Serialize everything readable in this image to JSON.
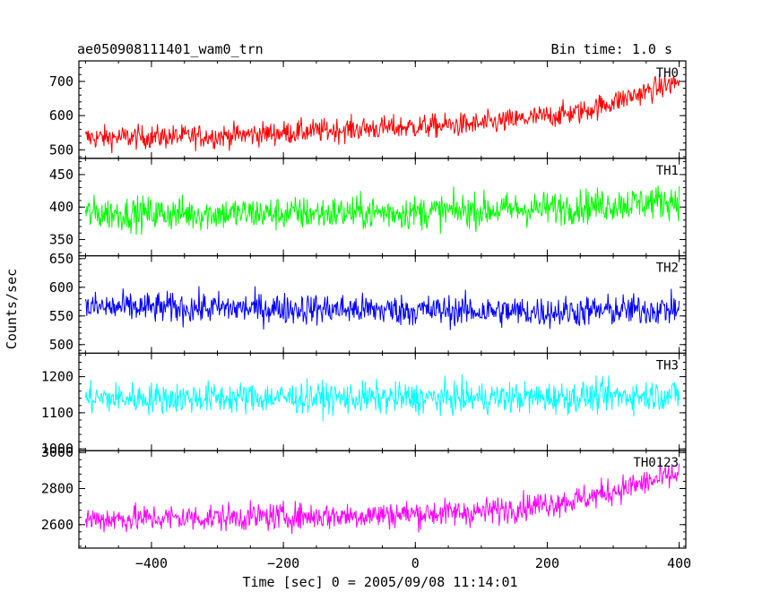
{
  "header": {
    "left_title": "ae050908111401_wam0_trn",
    "right_title": "Bin time: 1.0 s"
  },
  "chart_data": {
    "type": "line",
    "xlabel": "Time [sec] 0 = 2005/09/08 11:14:01",
    "ylabel": "Counts/sec",
    "xlim": [
      -510,
      410
    ],
    "x_ticks": [
      -400,
      -200,
      0,
      200,
      400
    ],
    "x_tick_labels": [
      "−400",
      "−200",
      "0",
      "200",
      "400"
    ],
    "x_start": -500,
    "x_end": 400,
    "x_step": 1,
    "panels": [
      {
        "name": "TH0",
        "color": "#ff0000",
        "ylim": [
          475,
          760
        ],
        "y_ticks": [
          500,
          600,
          700
        ],
        "y_tick_labels": [
          "500",
          "600",
          "700"
        ],
        "trend": [
          [
            -500,
            535
          ],
          [
            -300,
            540
          ],
          [
            -100,
            560
          ],
          [
            100,
            575
          ],
          [
            250,
            610
          ],
          [
            400,
            700
          ]
        ],
        "noise": 32
      },
      {
        "name": "TH1",
        "color": "#00ff00",
        "ylim": [
          325,
          475
        ],
        "y_ticks": [
          350,
          400,
          450
        ],
        "y_tick_labels": [
          "350",
          "400",
          "450"
        ],
        "trend": [
          [
            -500,
            390
          ],
          [
            -200,
            390
          ],
          [
            0,
            392
          ],
          [
            200,
            398
          ],
          [
            400,
            410
          ]
        ],
        "noise": 24
      },
      {
        "name": "TH2",
        "color": "#0000ff",
        "ylim": [
          485,
          655
        ],
        "y_ticks": [
          500,
          550,
          600,
          650
        ],
        "y_tick_labels": [
          "500",
          "550",
          "600",
          "650"
        ],
        "trend": [
          [
            -500,
            565
          ],
          [
            -200,
            563
          ],
          [
            0,
            560
          ],
          [
            200,
            557
          ],
          [
            400,
            562
          ]
        ],
        "noise": 25
      },
      {
        "name": "TH3",
        "color": "#00ffff",
        "ylim": [
          995,
          1265
        ],
        "y_ticks": [
          1000,
          1100,
          1200
        ],
        "y_tick_labels": [
          "1000",
          "1100",
          "1200"
        ],
        "trend": [
          [
            -500,
            1140
          ],
          [
            -200,
            1142
          ],
          [
            0,
            1140
          ],
          [
            200,
            1142
          ],
          [
            400,
            1150
          ]
        ],
        "noise": 40
      },
      {
        "name": "TH0123",
        "color": "#ff00ff",
        "ylim": [
          2470,
          3010
        ],
        "y_ticks": [
          2600,
          2800,
          3000
        ],
        "y_tick_labels": [
          "2600",
          "2800",
          "3000"
        ],
        "trend": [
          [
            -500,
            2630
          ],
          [
            -300,
            2640
          ],
          [
            -100,
            2650
          ],
          [
            100,
            2670
          ],
          [
            250,
            2740
          ],
          [
            400,
            2880
          ]
        ],
        "noise": 70
      }
    ]
  }
}
